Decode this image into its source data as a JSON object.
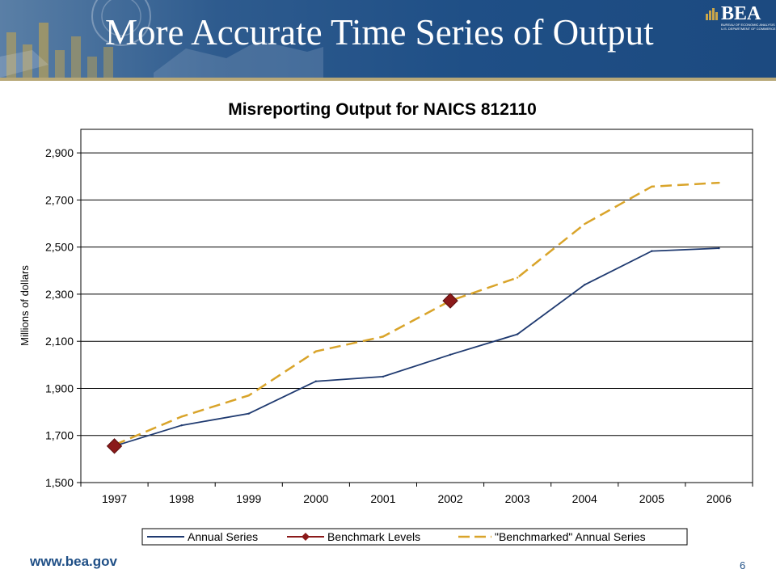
{
  "slide": {
    "title": "More Accurate Time Series of Output",
    "logo_text": "BEA",
    "logo_subtitle": "BUREAU OF ECONOMIC ANALYSIS",
    "logo_subtitle2": "U.S. DEPARTMENT OF COMMERCE",
    "footer_url": "www.bea.gov",
    "page_number": "6"
  },
  "colors": {
    "annual": "#1f3a70",
    "benchmark": "#8b1a1a",
    "benchmarked": "#d9a42a",
    "title_band": "#1f4f86",
    "footer_text": "#1f4f86"
  },
  "chart_data": {
    "type": "line",
    "title": "Misreporting Output for NAICS 812110",
    "xlabel": "",
    "ylabel": "Millions of dollars",
    "categories": [
      "1997",
      "1998",
      "1999",
      "2000",
      "2001",
      "2002",
      "2003",
      "2004",
      "2005",
      "2006"
    ],
    "ylim": [
      1500,
      3000
    ],
    "yticks": [
      1500,
      1700,
      1900,
      2100,
      2300,
      2500,
      2700,
      2900
    ],
    "ytick_labels": [
      "1,500",
      "1,700",
      "1,900",
      "2,100",
      "2,300",
      "2,500",
      "2,700",
      "2,900"
    ],
    "grid": true,
    "legend_position": "bottom",
    "series": [
      {
        "name": "Annual Series",
        "style": "solid",
        "values": [
          1655,
          1743,
          1793,
          1930,
          1950,
          2043,
          2130,
          2340,
          2483,
          2495
        ]
      },
      {
        "name": "Benchmark Levels",
        "style": "markers",
        "values": [
          1655,
          null,
          null,
          null,
          null,
          2272,
          null,
          null,
          null,
          null
        ]
      },
      {
        "name": "\"Benchmarked\" Annual Series",
        "style": "dashed",
        "values": [
          1660,
          1780,
          1870,
          2057,
          2120,
          2272,
          2370,
          2598,
          2757,
          2773
        ]
      }
    ]
  }
}
